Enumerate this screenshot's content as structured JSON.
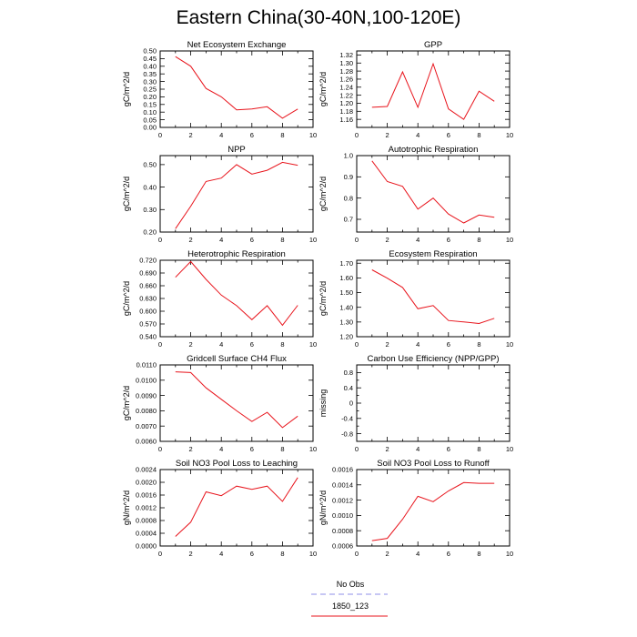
{
  "title": "Eastern China(30-40N,100-120E)",
  "colors": {
    "model": "#e8141c",
    "obs": "#8f8fe8",
    "axis": "#000000"
  },
  "legend": [
    {
      "label": "No Obs",
      "color": "#8f8fe8",
      "style": "dashed"
    },
    {
      "label": "1850_123",
      "color": "#e8141c",
      "style": "solid"
    }
  ],
  "chart_data": [
    {
      "type": "line",
      "title": "Net Ecosystem Exchange",
      "ylabel": "gC/m^2/d",
      "xlim": [
        0,
        10
      ],
      "xticks": [
        "0",
        "2",
        "4",
        "6",
        "8",
        "10"
      ],
      "ylim": [
        0.0,
        0.5
      ],
      "yticks": [
        "0.00",
        "0.05",
        "0.10",
        "0.15",
        "0.20",
        "0.25",
        "0.30",
        "0.35",
        "0.40",
        "0.45",
        "0.50"
      ],
      "series": [
        {
          "x": [
            1,
            2,
            3,
            4,
            5,
            6,
            7,
            8,
            9
          ],
          "values": [
            0.463,
            0.4,
            0.255,
            0.2,
            0.115,
            0.12,
            0.135,
            0.06,
            0.12
          ]
        }
      ]
    },
    {
      "type": "line",
      "title": "GPP",
      "ylabel": "gC/m^2/d",
      "xlim": [
        0,
        10
      ],
      "xticks": [
        "0",
        "2",
        "4",
        "6",
        "8",
        "10"
      ],
      "ylim": [
        1.14,
        1.33
      ],
      "yticks": [
        "1.16",
        "1.18",
        "1.20",
        "1.22",
        "1.24",
        "1.26",
        "1.28",
        "1.30",
        "1.32"
      ],
      "series": [
        {
          "x": [
            1,
            2,
            3,
            4,
            5,
            6,
            7,
            8,
            9
          ],
          "values": [
            1.19,
            1.192,
            1.278,
            1.19,
            1.298,
            1.186,
            1.16,
            1.23,
            1.205
          ]
        }
      ]
    },
    {
      "type": "line",
      "title": "NPP",
      "ylabel": "gC/m^2/d",
      "xlim": [
        0,
        10
      ],
      "xticks": [
        "0",
        "2",
        "4",
        "6",
        "8",
        "10"
      ],
      "ylim": [
        0.2,
        0.54
      ],
      "yticks": [
        "0.20",
        "0.30",
        "0.40",
        "0.50"
      ],
      "series": [
        {
          "x": [
            1,
            2,
            3,
            4,
            5,
            6,
            7,
            8,
            9
          ],
          "values": [
            0.215,
            0.315,
            0.425,
            0.44,
            0.5,
            0.458,
            0.475,
            0.51,
            0.497
          ]
        }
      ]
    },
    {
      "type": "line",
      "title": "Autotrophic Respiration",
      "ylabel": "gC/m^2/d",
      "xlim": [
        0,
        10
      ],
      "xticks": [
        "0",
        "2",
        "4",
        "6",
        "8",
        "10"
      ],
      "ylim": [
        0.64,
        1.0
      ],
      "yticks": [
        "0.7",
        "0.8",
        "0.9",
        "1.0"
      ],
      "series": [
        {
          "x": [
            1,
            2,
            3,
            4,
            5,
            6,
            7,
            8,
            9
          ],
          "values": [
            0.975,
            0.878,
            0.855,
            0.748,
            0.8,
            0.725,
            0.683,
            0.72,
            0.71
          ]
        }
      ]
    },
    {
      "type": "line",
      "title": "Heterotrophic Respiration",
      "ylabel": "gC/m^2/d",
      "xlim": [
        0,
        10
      ],
      "xticks": [
        "0",
        "2",
        "4",
        "6",
        "8",
        "10"
      ],
      "ylim": [
        0.54,
        0.72
      ],
      "yticks": [
        "0.540",
        "0.570",
        "0.600",
        "0.630",
        "0.660",
        "0.690",
        "0.720"
      ],
      "series": [
        {
          "x": [
            1,
            2,
            3,
            4,
            5,
            6,
            7,
            8,
            9
          ],
          "values": [
            0.68,
            0.717,
            0.675,
            0.638,
            0.613,
            0.58,
            0.613,
            0.567,
            0.614
          ]
        }
      ]
    },
    {
      "type": "line",
      "title": "Ecosystem Respiration",
      "ylabel": "gC/m^2/d",
      "xlim": [
        0,
        10
      ],
      "xticks": [
        "0",
        "2",
        "4",
        "6",
        "8",
        "10"
      ],
      "ylim": [
        1.2,
        1.72
      ],
      "yticks": [
        "1.20",
        "1.30",
        "1.40",
        "1.50",
        "1.60",
        "1.70"
      ],
      "series": [
        {
          "x": [
            1,
            2,
            3,
            4,
            5,
            6,
            7,
            8,
            9
          ],
          "values": [
            1.655,
            1.598,
            1.535,
            1.39,
            1.412,
            1.31,
            1.3,
            1.29,
            1.325
          ]
        }
      ]
    },
    {
      "type": "line",
      "title": "Gridcell Surface CH4 Flux",
      "ylabel": "gC/m^2/d",
      "xlim": [
        0,
        10
      ],
      "xticks": [
        "0",
        "2",
        "4",
        "6",
        "8",
        "10"
      ],
      "ylim": [
        0.006,
        0.011
      ],
      "yticks": [
        "0.0060",
        "0.0070",
        "0.0080",
        "0.0090",
        "0.0100",
        "0.0110"
      ],
      "series": [
        {
          "x": [
            1,
            2,
            3,
            4,
            5,
            6,
            7,
            8,
            9
          ],
          "values": [
            0.01055,
            0.0105,
            0.0095,
            0.00875,
            0.008,
            0.0073,
            0.0079,
            0.0069,
            0.00765
          ]
        }
      ]
    },
    {
      "type": "line",
      "title": "Carbon Use Efficiency (NPP/GPP)",
      "ylabel": "missing",
      "xlim": [
        0,
        10
      ],
      "xticks": [
        "0",
        "2",
        "4",
        "6",
        "8",
        "10"
      ],
      "ylim": [
        -1.0,
        1.0
      ],
      "yticks": [
        "-0.8",
        "-0.4",
        "0",
        "0.4",
        "0.8"
      ],
      "yminor": [
        -0.6,
        -0.2,
        0.2,
        0.6
      ],
      "series": []
    },
    {
      "type": "line",
      "title": "Soil NO3 Pool Loss to Leaching",
      "ylabel": "gN/m^2/d",
      "xlim": [
        0,
        10
      ],
      "xticks": [
        "0",
        "2",
        "4",
        "6",
        "8",
        "10"
      ],
      "ylim": [
        0.0,
        0.0024
      ],
      "yticks": [
        "0.0000",
        "0.0004",
        "0.0008",
        "0.0012",
        "0.0016",
        "0.0020",
        "0.0024"
      ],
      "series": [
        {
          "x": [
            1,
            2,
            3,
            4,
            5,
            6,
            7,
            8,
            9
          ],
          "values": [
            0.0003,
            0.00075,
            0.0017,
            0.00158,
            0.00188,
            0.00178,
            0.00188,
            0.0014,
            0.00215
          ]
        }
      ]
    },
    {
      "type": "line",
      "title": "Soil NO3 Pool Loss to Runoff",
      "ylabel": "gN/m^2/d",
      "xlim": [
        0,
        10
      ],
      "xticks": [
        "0",
        "2",
        "4",
        "6",
        "8",
        "10"
      ],
      "ylim": [
        0.0006,
        0.0016
      ],
      "yticks": [
        "0.0006",
        "0.0008",
        "0.0010",
        "0.0012",
        "0.0014",
        "0.0016"
      ],
      "series": [
        {
          "x": [
            1,
            2,
            3,
            4,
            5,
            6,
            7,
            8,
            9
          ],
          "values": [
            0.00067,
            0.0007,
            0.00095,
            0.00125,
            0.00118,
            0.00132,
            0.00143,
            0.00142,
            0.00142
          ]
        }
      ]
    }
  ]
}
